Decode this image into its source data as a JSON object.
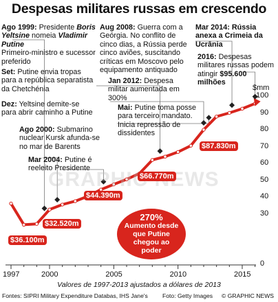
{
  "title": "Despesas militares russas em crescendo",
  "annotations": {
    "a1999": {
      "year": "Ago 1999:",
      "t1": " Presidente ",
      "name1": "Boris Yeltsine",
      "t2": " nomeia ",
      "name2": "Vladimir Putine",
      "t3": "Primeiro-ministro e sucessor preferido"
    },
    "set": {
      "key": "Set:",
      "text": " Putine envia tropas para a república separatista da Chetchénia"
    },
    "dez": {
      "key": "Dez:",
      "text": " Yeltsine demite-se para abrir caminho a Putine"
    },
    "a2000": {
      "key": "Ago 2000:",
      "text": " Submarino nuclear Kursk afunda-se no mar de Barents"
    },
    "m2004": {
      "key": "Mar 2004:",
      "text": " Putine é reeleito Presidente"
    },
    "a2008": {
      "key": "Aug 2008:",
      "text": " Guerra com a Geórgia. No conflito de cinco dias, a Rússia perde cinco aviões, suscitando críticas em Moscovo pelo equipamento antiquado"
    },
    "j2012": {
      "key": "Jan 2012:",
      "text": " Despesa militar aumentada em 300%"
    },
    "mai": {
      "key": "Mai:",
      "text": " Putine toma posse para terceiro mandato. Inicia repressão de dissidentes"
    },
    "m2014": {
      "key": "Mar 2014: Rússia anexa a Crimeia da Ucrânia"
    },
    "y2016": {
      "key": "2016:",
      "text": " Despesas militares russas podem atingir ",
      "value": "$95.600 milhões"
    }
  },
  "value_labels": [
    "$36.100m",
    "$32.520m",
    "$44.390m",
    "$66.770m",
    "$87.830m"
  ],
  "callout": {
    "line1": "270%",
    "line2": "Aumento desde",
    "line3": "que Putine",
    "line4": "chegou ao",
    "line5": "poder"
  },
  "unit": "$mm",
  "footer_note": "Valores de 1997-2013 ajustados a dólares de 2013",
  "sources": "Fontes: SIPRI Military Expenditure Databas, IHS Jane's",
  "foto": "Foto: Getty Images",
  "brand": "© GRAPHIC NEWS",
  "watermark": "GRAPHIC NEWS",
  "colors": {
    "accent": "#d8251d",
    "text": "#111111",
    "grid": "#999999"
  },
  "chart_data": {
    "type": "line",
    "x": [
      1997,
      1998,
      1999,
      2000,
      2001,
      2002,
      2003,
      2004,
      2005,
      2006,
      2007,
      2008,
      2009,
      2010,
      2011,
      2012,
      2013,
      2014,
      2015,
      2016
    ],
    "values": [
      36.1,
      23.5,
      24.0,
      32.52,
      35.5,
      37.5,
      40.5,
      44.39,
      47.5,
      50.5,
      54.0,
      62.0,
      64.0,
      66.77,
      70.5,
      80.0,
      87.83,
      90.0,
      92.5,
      95.6
    ],
    "xticks": [
      "1997",
      "2000",
      "2005",
      "2010",
      "2015"
    ],
    "yticks": [
      "0",
      "10",
      "20",
      "30",
      "40",
      "50",
      "60",
      "70",
      "80",
      "90",
      "100"
    ],
    "ylim": [
      0,
      100
    ],
    "xlim": [
      1997,
      2016.5
    ],
    "ylabel": "$mm",
    "event_markers": [
      1999.6,
      2000.6,
      2004.2,
      2008.6,
      2012.0,
      2012.4,
      2014.2,
      2016.0
    ],
    "grid": false
  }
}
